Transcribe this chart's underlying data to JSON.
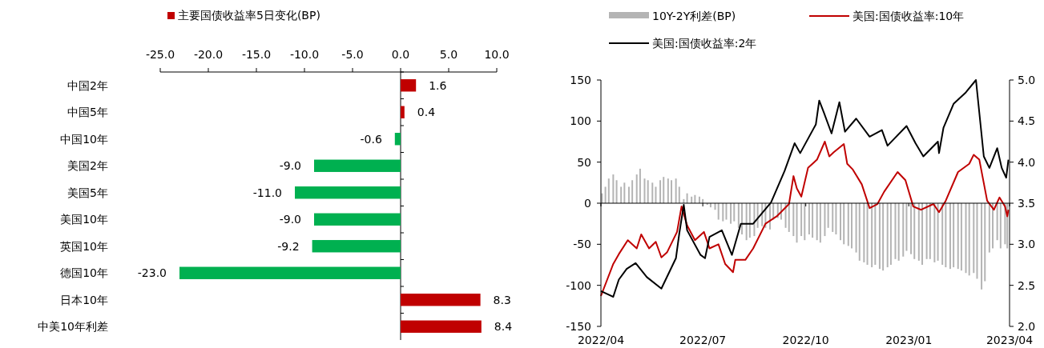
{
  "chart_data": [
    {
      "type": "bar",
      "orientation": "horizontal",
      "categories": [
        "中国2年",
        "中国5年",
        "中国10年",
        "美国2年",
        "美国5年",
        "美国10年",
        "英国10年",
        "德国10年",
        "日本10年",
        "中美10年利差"
      ],
      "series": [
        {
          "name": "主要国债收益率5日变化(BP)",
          "color": "#c00000",
          "colors": [
            "#c00000",
            "#c00000",
            "#00b050",
            "#00b050",
            "#00b050",
            "#00b050",
            "#00b050",
            "#00b050",
            "#c00000",
            "#c00000"
          ],
          "values": [
            1.6,
            0.4,
            -0.6,
            -9.0,
            -11.0,
            -9.0,
            -9.2,
            -23.0,
            8.3,
            8.4
          ],
          "value_labels": [
            "1.6",
            "0.4",
            "-0.6",
            "-9.0",
            "-11.0",
            "-9.0",
            "-9.2",
            "-23.0",
            "8.3",
            "8.4"
          ]
        }
      ],
      "xlim": [
        -25,
        10
      ],
      "xticks": [
        {
          "value": -25,
          "label": "-25.0"
        },
        {
          "value": -20,
          "label": "-20.0"
        },
        {
          "value": -15,
          "label": "-15.0"
        },
        {
          "value": -10,
          "label": "-10.0"
        },
        {
          "value": -5,
          "label": "-5.0"
        },
        {
          "value": 0,
          "label": "0.0"
        },
        {
          "value": 5,
          "label": "5.0"
        },
        {
          "value": 10,
          "label": "10.0"
        }
      ],
      "legend": "top"
    },
    {
      "type": "bar",
      "series": [
        {
          "name": "10Y-2Y利差(BP)",
          "type": "bar",
          "color": "#b4b4b4",
          "x": [
            "2022-04-02",
            "2022-04-05",
            "2022-04-08",
            "2022-04-12",
            "2022-04-15",
            "2022-04-19",
            "2022-04-22",
            "2022-04-26",
            "2022-04-29",
            "2022-05-03",
            "2022-05-06",
            "2022-05-10",
            "2022-05-13",
            "2022-05-17",
            "2022-05-20",
            "2022-05-24",
            "2022-05-27",
            "2022-05-31",
            "2022-06-03",
            "2022-06-07",
            "2022-06-10",
            "2022-06-14",
            "2022-06-17",
            "2022-06-21",
            "2022-06-24",
            "2022-06-28",
            "2022-07-01",
            "2022-07-05",
            "2022-07-08",
            "2022-07-12",
            "2022-07-15",
            "2022-07-19",
            "2022-07-22",
            "2022-07-26",
            "2022-07-29",
            "2022-08-02",
            "2022-08-05",
            "2022-08-09",
            "2022-08-12",
            "2022-08-16",
            "2022-08-19",
            "2022-08-23",
            "2022-08-26",
            "2022-08-30",
            "2022-09-02",
            "2022-09-06",
            "2022-09-09",
            "2022-09-13",
            "2022-09-16",
            "2022-09-20",
            "2022-09-23",
            "2022-09-27",
            "2022-09-30",
            "2022-10-04",
            "2022-10-07",
            "2022-10-11",
            "2022-10-14",
            "2022-10-18",
            "2022-10-21",
            "2022-10-25",
            "2022-10-28",
            "2022-11-01",
            "2022-11-04",
            "2022-11-08",
            "2022-11-11",
            "2022-11-15",
            "2022-11-18",
            "2022-11-22",
            "2022-11-25",
            "2022-11-29",
            "2022-12-02",
            "2022-12-06",
            "2022-12-09",
            "2022-12-13",
            "2022-12-16",
            "2022-12-20",
            "2022-12-23",
            "2022-12-27",
            "2022-12-30",
            "2023-01-03",
            "2023-01-06",
            "2023-01-10",
            "2023-01-13",
            "2023-01-17",
            "2023-01-20",
            "2023-01-24",
            "2023-01-27",
            "2023-01-31",
            "2023-02-03",
            "2023-02-07",
            "2023-02-10",
            "2023-02-14",
            "2023-02-17",
            "2023-02-21",
            "2023-02-24",
            "2023-02-28",
            "2023-03-03",
            "2023-03-07",
            "2023-03-10",
            "2023-03-14",
            "2023-03-17",
            "2023-03-21",
            "2023-03-24",
            "2023-03-28",
            "2023-03-30"
          ],
          "values": [
            12,
            20,
            30,
            35,
            28,
            20,
            25,
            20,
            28,
            35,
            42,
            30,
            28,
            25,
            20,
            28,
            32,
            30,
            28,
            30,
            20,
            5,
            12,
            8,
            10,
            8,
            5,
            -2,
            -5,
            -8,
            -20,
            -22,
            -20,
            -25,
            -22,
            -30,
            -38,
            -45,
            -42,
            -40,
            -30,
            -28,
            -30,
            -32,
            -20,
            -18,
            -20,
            -30,
            -35,
            -40,
            -48,
            -40,
            -45,
            -38,
            -42,
            -45,
            -48,
            -40,
            -30,
            -35,
            -38,
            -45,
            -50,
            -52,
            -55,
            -60,
            -70,
            -72,
            -75,
            -78,
            -75,
            -80,
            -82,
            -78,
            -75,
            -68,
            -70,
            -65,
            -58,
            -62,
            -68,
            -70,
            -75,
            -68,
            -68,
            -72,
            -70,
            -75,
            -78,
            -80,
            -78,
            -80,
            -82,
            -85,
            -88,
            -85,
            -92,
            -105,
            -95,
            -60,
            -55,
            -45,
            -55,
            -50,
            -55
          ]
        },
        {
          "name": "美国:国债收益率:10年",
          "type": "line",
          "axis": "y2",
          "color": "#c00000",
          "x": [
            "2022-04-01",
            "2022-04-12",
            "2022-04-17",
            "2022-04-25",
            "2022-05-03",
            "2022-05-07",
            "2022-05-14",
            "2022-05-20",
            "2022-05-25",
            "2022-05-30",
            "2022-06-08",
            "2022-06-12",
            "2022-06-17",
            "2022-06-24",
            "2022-07-02",
            "2022-07-07",
            "2022-07-15",
            "2022-07-21",
            "2022-07-28",
            "2022-07-30",
            "2022-08-08",
            "2022-08-15",
            "2022-08-26",
            "2022-09-05",
            "2022-09-16",
            "2022-09-20",
            "2022-09-23",
            "2022-09-27",
            "2022-10-03",
            "2022-10-11",
            "2022-10-18",
            "2022-10-22",
            "2022-10-26",
            "2022-11-04",
            "2022-11-07",
            "2022-11-12",
            "2022-11-20",
            "2022-11-27",
            "2022-12-04",
            "2022-12-10",
            "2022-12-22",
            "2022-12-29",
            "2023-01-05",
            "2023-01-12",
            "2023-01-23",
            "2023-01-28",
            "2023-02-03",
            "2023-02-14",
            "2023-02-24",
            "2023-02-28",
            "2023-03-05",
            "2023-03-12",
            "2023-03-18",
            "2023-03-23",
            "2023-03-28",
            "2023-03-30",
            "2023-03-31"
          ],
          "values": [
            2.37,
            2.76,
            2.88,
            3.05,
            2.95,
            3.12,
            2.95,
            3.03,
            2.84,
            2.9,
            3.15,
            3.46,
            3.23,
            3.05,
            3.15,
            2.95,
            3.0,
            2.76,
            2.66,
            2.81,
            2.81,
            2.95,
            3.25,
            3.34,
            3.49,
            3.83,
            3.68,
            3.58,
            3.93,
            4.03,
            4.25,
            4.07,
            4.12,
            4.22,
            3.98,
            3.91,
            3.73,
            3.44,
            3.49,
            3.64,
            3.88,
            3.78,
            3.46,
            3.42,
            3.49,
            3.39,
            3.53,
            3.88,
            3.98,
            4.09,
            4.03,
            3.53,
            3.42,
            3.57,
            3.46,
            3.34,
            3.42
          ]
        },
        {
          "name": "美国:国债收益率:2年",
          "type": "line",
          "axis": "y2",
          "color": "#000000",
          "x": [
            "2022-04-01",
            "2022-04-12",
            "2022-04-17",
            "2022-04-24",
            "2022-05-02",
            "2022-05-12",
            "2022-05-25",
            "2022-06-07",
            "2022-06-10",
            "2022-06-14",
            "2022-06-17",
            "2022-06-29",
            "2022-07-03",
            "2022-07-07",
            "2022-07-18",
            "2022-07-27",
            "2022-08-04",
            "2022-08-15",
            "2022-08-31",
            "2022-09-12",
            "2022-09-21",
            "2022-09-26",
            "2022-10-10",
            "2022-10-13",
            "2022-10-17",
            "2022-10-24",
            "2022-10-31",
            "2022-11-05",
            "2022-11-15",
            "2022-11-27",
            "2022-12-08",
            "2022-12-13",
            "2022-12-30",
            "2023-01-07",
            "2023-01-14",
            "2023-01-27",
            "2023-01-28",
            "2023-02-01",
            "2023-02-10",
            "2023-02-21",
            "2023-03-02",
            "2023-03-09",
            "2023-03-14",
            "2023-03-21",
            "2023-03-25",
            "2023-03-29",
            "2023-03-31"
          ],
          "values": [
            2.43,
            2.36,
            2.57,
            2.7,
            2.77,
            2.6,
            2.46,
            2.83,
            3.13,
            3.48,
            3.17,
            2.87,
            2.83,
            3.09,
            3.17,
            2.87,
            3.25,
            3.25,
            3.51,
            3.89,
            4.23,
            4.11,
            4.46,
            4.75,
            4.61,
            4.35,
            4.73,
            4.37,
            4.53,
            4.31,
            4.39,
            4.2,
            4.44,
            4.23,
            4.07,
            4.25,
            4.11,
            4.42,
            4.71,
            4.85,
            5.0,
            4.07,
            3.93,
            4.17,
            3.93,
            3.81,
            4.03
          ]
        }
      ],
      "xlim": [
        "2022-04",
        "2023-04"
      ],
      "xticks": [
        {
          "value": "2022-04",
          "label": "2022/04"
        },
        {
          "value": "2022-07",
          "label": "2022/07"
        },
        {
          "value": "2022-10",
          "label": "2022/10"
        },
        {
          "value": "2023-01",
          "label": "2023/01"
        },
        {
          "value": "2023-04",
          "label": "2023/04"
        }
      ],
      "ylim": [
        -150,
        150
      ],
      "yticks": [
        -150,
        -100,
        -50,
        0,
        50,
        100,
        150
      ],
      "y2lim": [
        2,
        5
      ],
      "y2ticks": [
        {
          "value": 2,
          "label": "2.0"
        },
        {
          "value": 2.5,
          "label": "2.5"
        },
        {
          "value": 3,
          "label": "3.0"
        },
        {
          "value": 3.5,
          "label": "3.5"
        },
        {
          "value": 4,
          "label": "4.0"
        },
        {
          "value": 4.5,
          "label": "4.5"
        },
        {
          "value": 5,
          "label": "5.0"
        }
      ],
      "legend": "top"
    }
  ]
}
